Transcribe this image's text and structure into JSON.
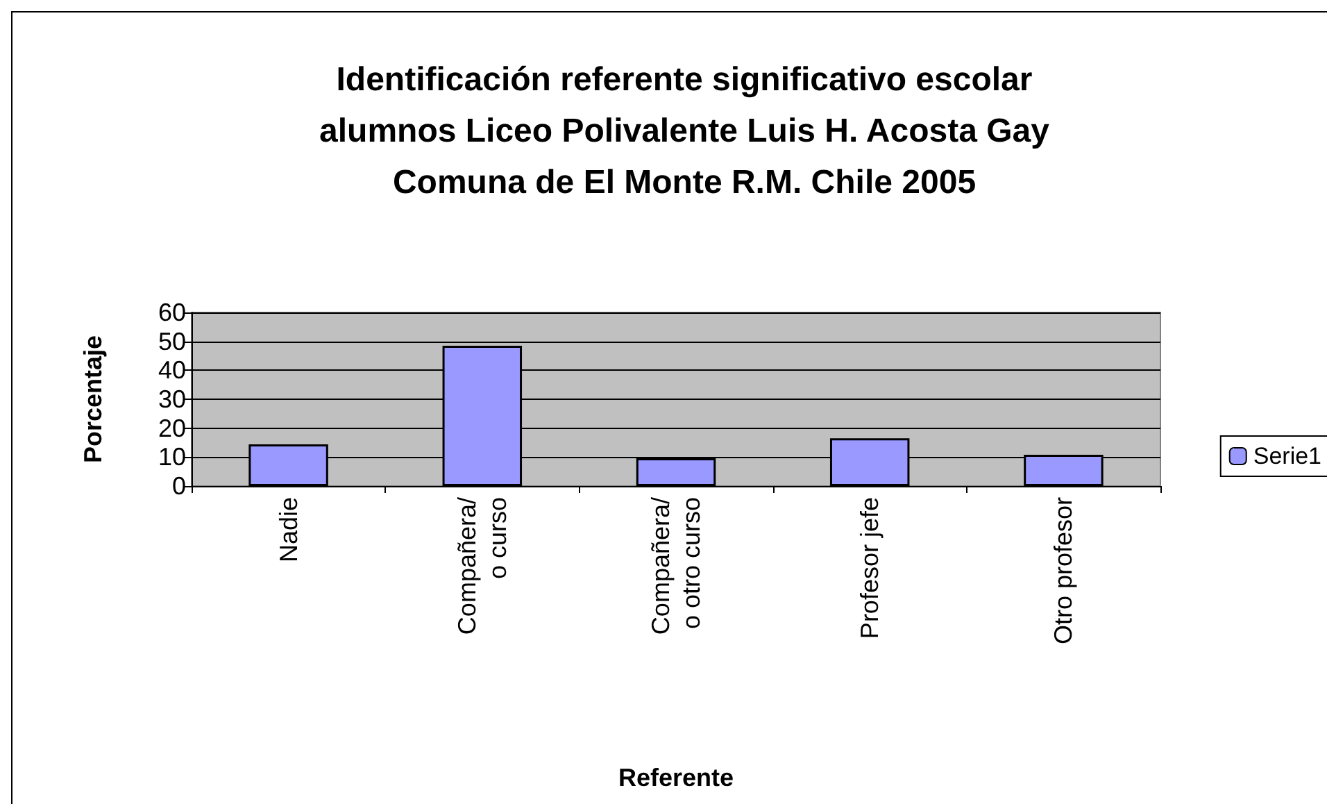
{
  "chart_data": {
    "type": "bar",
    "title": "Identificación referente significativo escolar\nalumnos Liceo Polivalente Luis H. Acosta Gay\nComuna de El Monte R.M. Chile 2005",
    "xlabel": "Referente",
    "ylabel": "Porcentaje",
    "categories": [
      "Nadie",
      "Compañera/\no curso",
      "Compañera/\no otro curso",
      "Profesor jefe",
      "Otro profesor"
    ],
    "series": [
      {
        "name": "Serie1",
        "color": "#9999ff",
        "values": [
          14.4,
          48.5,
          9.6,
          16.5,
          10.8
        ]
      }
    ],
    "ylim": [
      0,
      60
    ],
    "yticks": [
      0,
      10,
      20,
      30,
      40,
      50,
      60
    ],
    "grid": "y",
    "legend": "right"
  }
}
